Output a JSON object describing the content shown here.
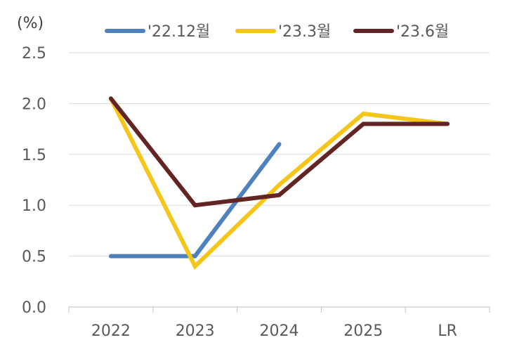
{
  "chart_data": {
    "type": "line",
    "unit_label": "(%)",
    "categories": [
      "2022",
      "2023",
      "2024",
      "2025",
      "LR"
    ],
    "ylim": [
      0,
      2.5
    ],
    "yticks": [
      "0.0",
      "0.5",
      "1.0",
      "1.5",
      "2.0",
      "2.5"
    ],
    "grid": true,
    "legend_position": "top",
    "series": [
      {
        "name": "'22.12월",
        "color": "#4f81bd",
        "values": [
          0.5,
          0.5,
          1.6,
          null,
          null
        ]
      },
      {
        "name": "'23.3월",
        "color": "#f5c518",
        "values": [
          2.05,
          0.4,
          1.2,
          1.9,
          1.8
        ]
      },
      {
        "name": "'23.6월",
        "color": "#632523",
        "values": [
          2.05,
          1.0,
          1.1,
          1.8,
          1.8
        ]
      }
    ]
  }
}
